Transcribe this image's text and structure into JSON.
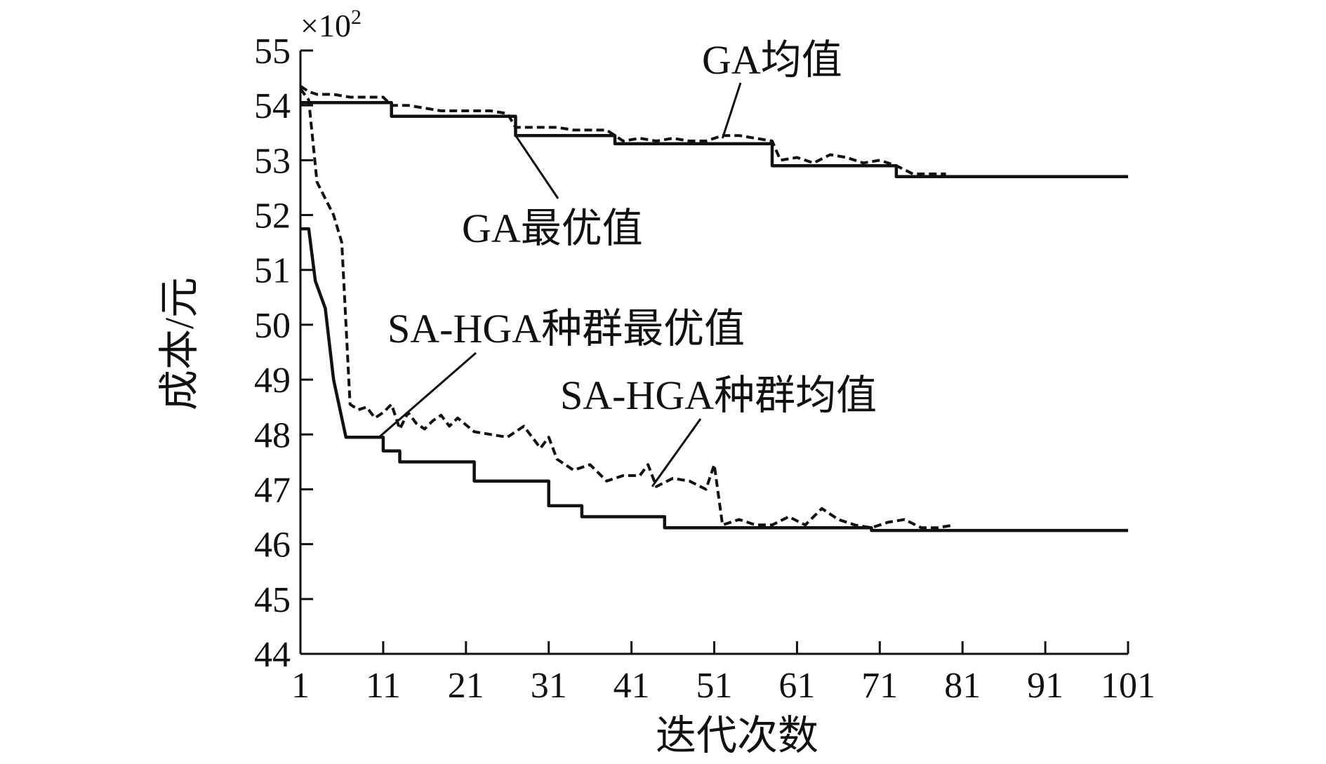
{
  "chart_data": {
    "type": "line",
    "xlabel": "迭代次数",
    "ylabel": "成本/元",
    "y_multiplier": "×10",
    "y_multiplier_exp": "2",
    "xlim": [
      1,
      101
    ],
    "ylim": [
      44,
      55
    ],
    "xticks": [
      "1",
      "11",
      "21",
      "31",
      "41",
      "51",
      "61",
      "71",
      "81",
      "91",
      "101"
    ],
    "yticks": [
      "44",
      "45",
      "46",
      "47",
      "48",
      "49",
      "50",
      "51",
      "52",
      "53",
      "54",
      "55"
    ],
    "grid": false,
    "legend": "none",
    "series": [
      {
        "name": "GA最优值",
        "style": "solid",
        "color": "#111111",
        "x": [
          1,
          12,
          12,
          27,
          27,
          39,
          39,
          58,
          58,
          73,
          73,
          101
        ],
        "y": [
          54.05,
          54.05,
          53.8,
          53.8,
          53.45,
          53.45,
          53.3,
          53.3,
          52.9,
          52.9,
          52.7,
          52.7
        ]
      },
      {
        "name": "GA均值",
        "style": "dashed",
        "color": "#111111",
        "x": [
          1,
          2,
          3,
          5,
          7,
          9,
          11,
          12,
          14,
          16,
          18,
          20,
          22,
          24,
          26,
          27,
          28,
          30,
          32,
          34,
          36,
          38,
          40,
          42,
          44,
          46,
          48,
          50,
          52,
          54,
          56,
          58,
          59,
          61,
          63,
          65,
          67,
          69,
          71,
          73,
          75,
          77,
          79
        ],
        "y": [
          54.35,
          54.25,
          54.2,
          54.2,
          54.15,
          54.15,
          54.15,
          54.0,
          54.0,
          53.95,
          53.9,
          53.9,
          53.9,
          53.9,
          53.85,
          53.6,
          53.6,
          53.6,
          53.6,
          53.55,
          53.55,
          53.55,
          53.35,
          53.4,
          53.35,
          53.4,
          53.35,
          53.35,
          53.45,
          53.45,
          53.4,
          53.35,
          53.0,
          53.05,
          52.95,
          53.1,
          53.05,
          52.95,
          53.0,
          52.9,
          52.75,
          52.75,
          52.75
        ]
      },
      {
        "name": "SA-HGA种群最优值",
        "style": "solid",
        "color": "#111111",
        "x": [
          1,
          2,
          2.8,
          4,
          5,
          6.5,
          11,
          11,
          13,
          13,
          15,
          15,
          22,
          22,
          31,
          31,
          35,
          35,
          45,
          45,
          70,
          70,
          101
        ],
        "y": [
          51.75,
          51.75,
          50.8,
          50.3,
          49.0,
          47.95,
          47.95,
          47.7,
          47.7,
          47.5,
          47.5,
          47.5,
          47.5,
          47.15,
          47.15,
          46.7,
          46.7,
          46.5,
          46.5,
          46.3,
          46.3,
          46.25,
          46.25
        ]
      },
      {
        "name": "SA-HGA种群均值",
        "style": "dashed",
        "color": "#111111",
        "x": [
          1,
          2,
          3,
          4,
          5,
          6,
          7,
          8,
          9,
          10,
          11,
          12,
          13,
          14,
          15,
          16,
          17,
          18,
          19,
          20,
          22,
          24,
          26,
          28,
          30,
          31,
          32,
          34,
          36,
          38,
          40,
          42,
          43,
          44,
          46,
          48,
          50,
          51,
          52,
          54,
          56,
          58,
          60,
          62,
          64,
          66,
          68,
          70,
          72,
          74,
          76,
          78,
          80
        ],
        "y": [
          54.3,
          54.1,
          52.6,
          52.3,
          52.0,
          51.5,
          48.55,
          48.45,
          48.5,
          48.3,
          48.4,
          48.55,
          48.1,
          48.4,
          48.2,
          48.1,
          48.25,
          48.35,
          48.15,
          48.3,
          48.05,
          48.0,
          47.95,
          48.15,
          47.75,
          47.95,
          47.55,
          47.35,
          47.45,
          47.15,
          47.25,
          47.25,
          47.45,
          47.05,
          47.2,
          47.15,
          47.0,
          47.45,
          46.35,
          46.45,
          46.35,
          46.35,
          46.5,
          46.35,
          46.65,
          46.45,
          46.35,
          46.3,
          46.4,
          46.45,
          46.3,
          46.3,
          46.35
        ]
      }
    ],
    "annotations": [
      {
        "text": "GA均值",
        "points_to_series": "GA均值",
        "arrow_x": 52,
        "arrow_y": 53.4
      },
      {
        "text": "GA最优值",
        "points_to_series": "GA最优值",
        "arrow_x": 27,
        "arrow_y": 53.45
      },
      {
        "text": "SA-HGA种群最优值",
        "points_to_series": "SA-HGA种群最优值",
        "arrow_x": 10.5,
        "arrow_y": 47.95
      },
      {
        "text": "SA-HGA种群均值",
        "points_to_series": "SA-HGA种群均值",
        "arrow_x": 43.5,
        "arrow_y": 47.05
      }
    ]
  }
}
